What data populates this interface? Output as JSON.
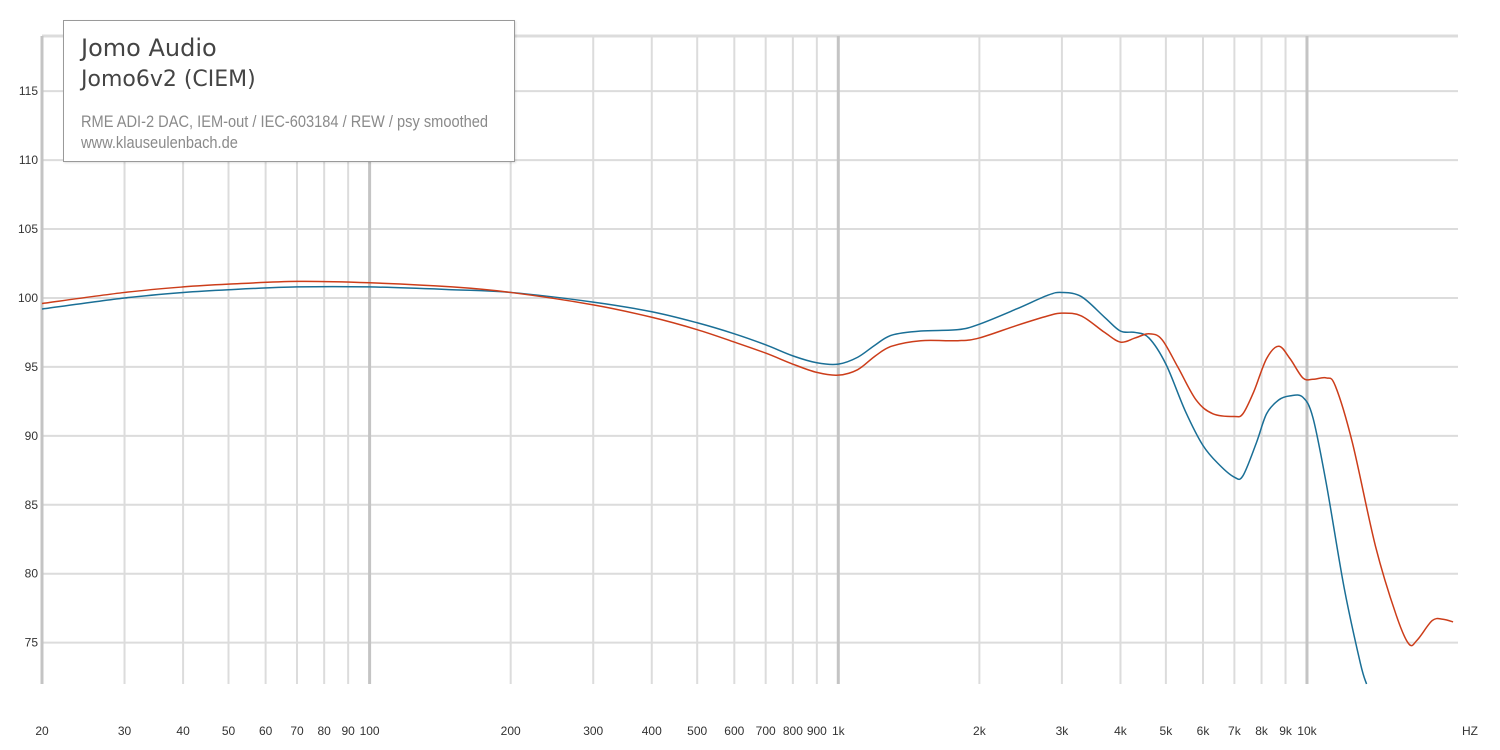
{
  "header": {
    "brand": "Jomo Audio",
    "model": "Jomo6v2 (CIEM)",
    "setup": "RME ADI-2 DAC, IEM-out / IEC-603184 / REW / psy smoothed",
    "website": "www.klauseulenbach.de"
  },
  "colors": {
    "series_left": "#1a6f96",
    "series_right": "#cc3d1a",
    "grid": "#dcdcdc",
    "grid_major": "#c4c4c4",
    "axis_text": "#333333"
  },
  "chart_data": {
    "type": "line",
    "title": "",
    "xlabel": "",
    "ylabel": "",
    "x_scale": "log",
    "xlim": [
      20,
      21000
    ],
    "ylim": [
      72,
      119
    ],
    "grid": true,
    "legend": "top-left",
    "x_ticks": [
      {
        "value": 20,
        "label": "20"
      },
      {
        "value": 30,
        "label": "30"
      },
      {
        "value": 40,
        "label": "40"
      },
      {
        "value": 50,
        "label": "50"
      },
      {
        "value": 60,
        "label": "60"
      },
      {
        "value": 70,
        "label": "70"
      },
      {
        "value": 80,
        "label": "80"
      },
      {
        "value": 90,
        "label": "90"
      },
      {
        "value": 100,
        "label": "100"
      },
      {
        "value": 200,
        "label": "200"
      },
      {
        "value": 300,
        "label": "300"
      },
      {
        "value": 400,
        "label": "400"
      },
      {
        "value": 500,
        "label": "500"
      },
      {
        "value": 600,
        "label": "600"
      },
      {
        "value": 700,
        "label": "700"
      },
      {
        "value": 800,
        "label": "800"
      },
      {
        "value": 900,
        "label": "900"
      },
      {
        "value": 1000,
        "label": "1k"
      },
      {
        "value": 2000,
        "label": "2k"
      },
      {
        "value": 3000,
        "label": "3k"
      },
      {
        "value": 4000,
        "label": "4k"
      },
      {
        "value": 5000,
        "label": "5k"
      },
      {
        "value": 6000,
        "label": "6k"
      },
      {
        "value": 7000,
        "label": "7k"
      },
      {
        "value": 8000,
        "label": "8k"
      },
      {
        "value": 9000,
        "label": "9k"
      },
      {
        "value": 10000,
        "label": "10k"
      }
    ],
    "x_unit_label": "HZ",
    "y_ticks": [
      {
        "value": 75,
        "label": "75"
      },
      {
        "value": 80,
        "label": "80"
      },
      {
        "value": 85,
        "label": "85"
      },
      {
        "value": 90,
        "label": "90"
      },
      {
        "value": 95,
        "label": "95"
      },
      {
        "value": 100,
        "label": "100"
      },
      {
        "value": 105,
        "label": "105"
      },
      {
        "value": 110,
        "label": "110"
      },
      {
        "value": 115,
        "label": "115"
      }
    ],
    "series": [
      {
        "color": "#1a6f96",
        "points": [
          [
            20,
            99.2
          ],
          [
            30,
            100.0
          ],
          [
            40,
            100.4
          ],
          [
            50,
            100.6
          ],
          [
            70,
            100.8
          ],
          [
            100,
            100.8
          ],
          [
            150,
            100.6
          ],
          [
            200,
            100.4
          ],
          [
            300,
            99.7
          ],
          [
            400,
            99.0
          ],
          [
            500,
            98.2
          ],
          [
            600,
            97.4
          ],
          [
            700,
            96.6
          ],
          [
            800,
            95.8
          ],
          [
            900,
            95.3
          ],
          [
            1000,
            95.2
          ],
          [
            1100,
            95.7
          ],
          [
            1200,
            96.6
          ],
          [
            1300,
            97.3
          ],
          [
            1500,
            97.6
          ],
          [
            1800,
            97.7
          ],
          [
            2000,
            98.1
          ],
          [
            2400,
            99.2
          ],
          [
            2800,
            100.2
          ],
          [
            3000,
            100.4
          ],
          [
            3300,
            100.1
          ],
          [
            3700,
            98.6
          ],
          [
            4000,
            97.6
          ],
          [
            4300,
            97.5
          ],
          [
            4600,
            97.1
          ],
          [
            5000,
            95.2
          ],
          [
            5500,
            91.8
          ],
          [
            6000,
            89.3
          ],
          [
            6500,
            87.9
          ],
          [
            7000,
            87.0
          ],
          [
            7300,
            87.1
          ],
          [
            7800,
            89.5
          ],
          [
            8200,
            91.6
          ],
          [
            8700,
            92.6
          ],
          [
            9200,
            92.9
          ],
          [
            9800,
            92.8
          ],
          [
            10300,
            91.3
          ],
          [
            11000,
            86.5
          ],
          [
            12000,
            79.0
          ],
          [
            13000,
            73.5
          ],
          [
            13400,
            72.0
          ]
        ]
      },
      {
        "color": "#cc3d1a",
        "points": [
          [
            20,
            99.6
          ],
          [
            30,
            100.4
          ],
          [
            40,
            100.8
          ],
          [
            50,
            101.0
          ],
          [
            70,
            101.2
          ],
          [
            100,
            101.1
          ],
          [
            150,
            100.8
          ],
          [
            200,
            100.4
          ],
          [
            300,
            99.5
          ],
          [
            400,
            98.6
          ],
          [
            500,
            97.7
          ],
          [
            600,
            96.8
          ],
          [
            700,
            96.0
          ],
          [
            800,
            95.2
          ],
          [
            900,
            94.6
          ],
          [
            1000,
            94.4
          ],
          [
            1100,
            94.8
          ],
          [
            1200,
            95.8
          ],
          [
            1300,
            96.5
          ],
          [
            1500,
            96.9
          ],
          [
            1800,
            96.9
          ],
          [
            2000,
            97.1
          ],
          [
            2400,
            98.0
          ],
          [
            2800,
            98.7
          ],
          [
            3000,
            98.9
          ],
          [
            3300,
            98.7
          ],
          [
            3700,
            97.5
          ],
          [
            4000,
            96.8
          ],
          [
            4300,
            97.1
          ],
          [
            4600,
            97.4
          ],
          [
            4900,
            97.0
          ],
          [
            5300,
            95.0
          ],
          [
            5800,
            92.6
          ],
          [
            6300,
            91.6
          ],
          [
            7000,
            91.4
          ],
          [
            7300,
            91.6
          ],
          [
            7700,
            93.2
          ],
          [
            8200,
            95.6
          ],
          [
            8700,
            96.5
          ],
          [
            9200,
            95.6
          ],
          [
            9800,
            94.2
          ],
          [
            10300,
            94.1
          ],
          [
            11000,
            94.2
          ],
          [
            11500,
            93.6
          ],
          [
            12500,
            89.5
          ],
          [
            14000,
            82.0
          ],
          [
            15500,
            77.0
          ],
          [
            16500,
            74.9
          ],
          [
            17200,
            75.2
          ],
          [
            18500,
            76.6
          ],
          [
            19500,
            76.7
          ],
          [
            20500,
            76.5
          ]
        ]
      }
    ]
  }
}
